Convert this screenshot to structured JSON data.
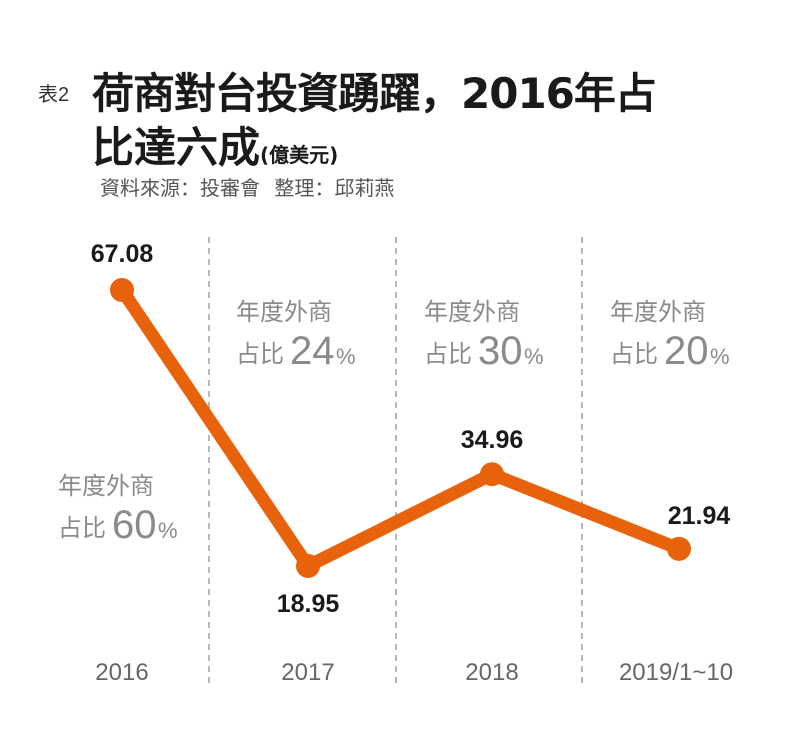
{
  "header": {
    "prefix": "表2",
    "title_line1": "荷商對台投資踴躍，2016年占",
    "title_line2": "比達六成",
    "unit": "(億美元)",
    "source_label": "資料來源：投審會",
    "editor_label": "整理：邱莉燕"
  },
  "colors": {
    "line": "#e8620c",
    "text_dark": "#1a1a1a",
    "text_gray": "#8a8a8a",
    "divider": "#888888"
  },
  "chart_data": {
    "type": "line",
    "title": "荷商對台投資踴躍，2016年占比達六成",
    "unit": "億美元",
    "xlabel": "",
    "ylabel": "",
    "categories": [
      "2016",
      "2017",
      "2018",
      "2019/1~10"
    ],
    "values": [
      67.08,
      18.95,
      34.96,
      21.94
    ],
    "value_labels": [
      "67.08",
      "18.95",
      "34.96",
      "21.94"
    ],
    "ylim": [
      0,
      80
    ],
    "grid": false,
    "annotations": [
      {
        "category": "2016",
        "line1": "年度外商",
        "line2_prefix": "占比",
        "percent": "60",
        "suffix": "%"
      },
      {
        "category": "2017",
        "line1": "年度外商",
        "line2_prefix": "占比",
        "percent": "24",
        "suffix": "%"
      },
      {
        "category": "2018",
        "line1": "年度外商",
        "line2_prefix": "占比",
        "percent": "30",
        "suffix": "%"
      },
      {
        "category": "2019/1~10",
        "line1": "年度外商",
        "line2_prefix": "占比",
        "percent": "20",
        "suffix": "%"
      }
    ]
  }
}
